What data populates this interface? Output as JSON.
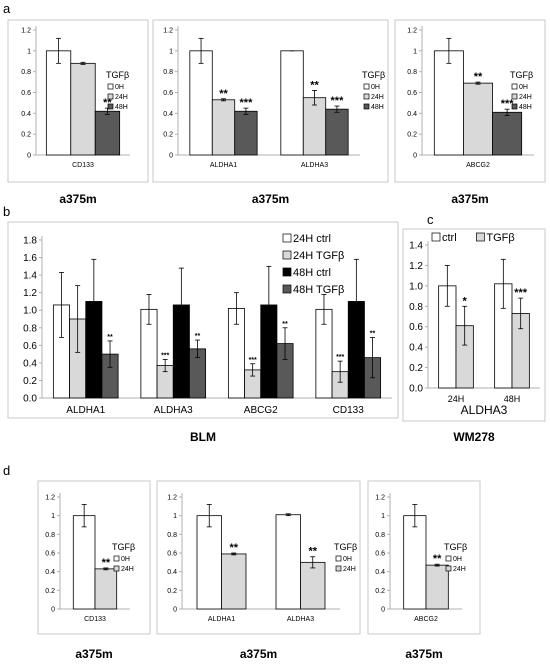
{
  "colors": {
    "frame": "#c8c8c8",
    "axis": "#b0b0b0",
    "white": "#ffffff",
    "light": "#d9d9d9",
    "dark": "#595959",
    "black": "#000000"
  },
  "panels": {
    "a": "a",
    "b": "b",
    "c": "c",
    "d": "d"
  },
  "subtitles": {
    "a1": "a375m",
    "a2": "a375m",
    "a3": "a375m",
    "b": "BLM",
    "c": "WM278",
    "d1": "a375m",
    "d2": "a375m",
    "d3": "a375m"
  },
  "chart_data": [
    {
      "id": "a1",
      "type": "bar",
      "categories": [
        "CD133"
      ],
      "yticks": [
        "0",
        "0.2",
        "0.4",
        "0.6",
        "0.8",
        "1",
        "1.2"
      ],
      "ylim": [
        0,
        1.2
      ],
      "legend_title": "TGFβ",
      "series": [
        {
          "name": "0H",
          "values": [
            1.0
          ],
          "err": [
            0.12
          ],
          "sig": [
            ""
          ]
        },
        {
          "name": "24H",
          "values": [
            0.88
          ],
          "err": [
            0.01
          ],
          "sig": [
            ""
          ]
        },
        {
          "name": "48H",
          "values": [
            0.42
          ],
          "err": [
            0.03
          ],
          "sig": [
            "**"
          ]
        }
      ]
    },
    {
      "id": "a2",
      "type": "bar",
      "categories": [
        "ALDHA1",
        "ALDHA3"
      ],
      "yticks": [
        "0",
        "0.2",
        "0.4",
        "0.6",
        "0.8",
        "1",
        "1.2"
      ],
      "ylim": [
        0,
        1.2
      ],
      "legend_title": "TGFβ",
      "series": [
        {
          "name": "0H",
          "values": [
            1.0,
            1.0
          ],
          "err": [
            0.12,
            0.0
          ],
          "sig": [
            "",
            ""
          ]
        },
        {
          "name": "24H",
          "values": [
            0.53,
            0.55
          ],
          "err": [
            0.01,
            0.07
          ],
          "sig": [
            "**",
            "**"
          ]
        },
        {
          "name": "48H",
          "values": [
            0.42,
            0.44
          ],
          "err": [
            0.03,
            0.03
          ],
          "sig": [
            "***",
            "***"
          ]
        }
      ]
    },
    {
      "id": "a3",
      "type": "bar",
      "categories": [
        "ABCG2"
      ],
      "yticks": [
        "0",
        "0.2",
        "0.4",
        "0.6",
        "0.8",
        "1",
        "1.2"
      ],
      "ylim": [
        0,
        1.2
      ],
      "legend_title": "TGFβ",
      "series": [
        {
          "name": "0H",
          "values": [
            1.0
          ],
          "err": [
            0.12
          ],
          "sig": [
            ""
          ]
        },
        {
          "name": "24H",
          "values": [
            0.69
          ],
          "err": [
            0.01
          ],
          "sig": [
            "**"
          ]
        },
        {
          "name": "48H",
          "values": [
            0.41
          ],
          "err": [
            0.03
          ],
          "sig": [
            "***"
          ]
        }
      ]
    },
    {
      "id": "b",
      "type": "bar",
      "categories": [
        "ALDHA1",
        "ALDHA3",
        "ABCG2",
        "CD133"
      ],
      "yticks": [
        "0.0",
        "0.2",
        "0.4",
        "0.6",
        "0.8",
        "1.0",
        "1.2",
        "1.4",
        "1.6",
        "1.8"
      ],
      "ylim": [
        0,
        1.8
      ],
      "series": [
        {
          "name": "24H ctrl",
          "values": [
            1.06,
            1.01,
            1.02,
            1.01
          ],
          "err": [
            0.37,
            0.17,
            0.18,
            0.17
          ],
          "sig": [
            "",
            "",
            "",
            ""
          ]
        },
        {
          "name": "24H TGFβ",
          "values": [
            0.9,
            0.37,
            0.32,
            0.3
          ],
          "err": [
            0.38,
            0.07,
            0.07,
            0.12
          ],
          "sig": [
            "",
            "***",
            "***",
            "***"
          ]
        },
        {
          "name": "48H ctrl",
          "values": [
            1.1,
            1.06,
            1.06,
            1.1
          ],
          "err": [
            0.48,
            0.42,
            0.44,
            0.48
          ],
          "sig": [
            "",
            "",
            "",
            ""
          ]
        },
        {
          "name": "48H TGFβ",
          "values": [
            0.5,
            0.56,
            0.62,
            0.46
          ],
          "err": [
            0.15,
            0.1,
            0.18,
            0.23
          ],
          "sig": [
            "**",
            "**",
            "**",
            "**"
          ]
        }
      ]
    },
    {
      "id": "c",
      "type": "bar",
      "categories": [
        "24H",
        "48H"
      ],
      "xlabel": "ALDHA3",
      "yticks": [
        "0.0",
        "0.2",
        "0.4",
        "0.6",
        "0.8",
        "1.0",
        "1.2",
        "1.4"
      ],
      "ylim": [
        0,
        1.4
      ],
      "series": [
        {
          "name": "ctrl",
          "values": [
            1.0,
            1.02
          ],
          "err": [
            0.2,
            0.24
          ],
          "sig": [
            "",
            ""
          ]
        },
        {
          "name": "TGFβ",
          "values": [
            0.61,
            0.73
          ],
          "err": [
            0.19,
            0.15
          ],
          "sig": [
            "*",
            "***"
          ]
        }
      ]
    },
    {
      "id": "d1",
      "type": "bar",
      "categories": [
        "CD133"
      ],
      "yticks": [
        "0",
        "0.2",
        "0.4",
        "0.6",
        "0.8",
        "1",
        "1.2"
      ],
      "ylim": [
        0,
        1.2
      ],
      "legend_title": "TGFβ",
      "series": [
        {
          "name": "0H",
          "values": [
            1.0
          ],
          "err": [
            0.12
          ],
          "sig": [
            ""
          ]
        },
        {
          "name": "24H",
          "values": [
            0.43
          ],
          "err": [
            0.01
          ],
          "sig": [
            "**"
          ]
        }
      ]
    },
    {
      "id": "d2",
      "type": "bar",
      "categories": [
        "ALDHA1",
        "ALDHA3"
      ],
      "yticks": [
        "0",
        "0.2",
        "0.4",
        "0.6",
        "0.8",
        "1",
        "1.2"
      ],
      "ylim": [
        0,
        1.2
      ],
      "legend_title": "TGFβ",
      "series": [
        {
          "name": "0H",
          "values": [
            1.0,
            1.01
          ],
          "err": [
            0.12,
            0.01
          ],
          "sig": [
            "",
            ""
          ]
        },
        {
          "name": "24H",
          "values": [
            0.59,
            0.5
          ],
          "err": [
            0.01,
            0.06
          ],
          "sig": [
            "**",
            "**"
          ]
        }
      ]
    },
    {
      "id": "d3",
      "type": "bar",
      "categories": [
        "ABCG2"
      ],
      "yticks": [
        "0",
        "0.2",
        "0.4",
        "0.6",
        "0.8",
        "1",
        "1.2"
      ],
      "ylim": [
        0,
        1.2
      ],
      "legend_title": "TGFβ",
      "series": [
        {
          "name": "0H",
          "values": [
            1.0
          ],
          "err": [
            0.12
          ],
          "sig": [
            ""
          ]
        },
        {
          "name": "24H",
          "values": [
            0.47
          ],
          "err": [
            0.01
          ],
          "sig": [
            "**"
          ]
        }
      ]
    }
  ]
}
